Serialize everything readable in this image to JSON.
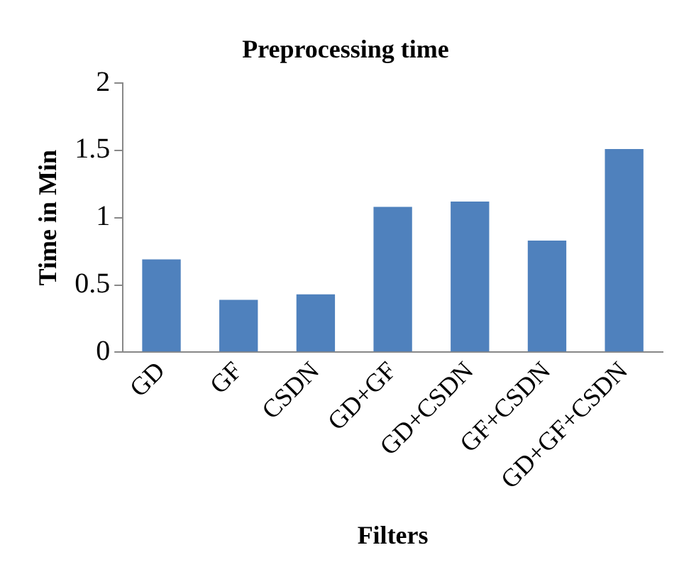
{
  "chart_data": {
    "type": "bar",
    "title": "Preprocessing time",
    "xlabel": "Filters",
    "ylabel": "Time in Min",
    "categories": [
      "GD",
      "GF",
      "CSDN",
      "GD+GF",
      "GD+CSDN",
      "GF+CSDN",
      "GD+GF+CSDN"
    ],
    "values": [
      0.69,
      0.39,
      0.43,
      1.08,
      1.12,
      0.83,
      1.51
    ],
    "color": "#4f81bd",
    "ylim": [
      0,
      2
    ],
    "yticks": [
      0,
      0.5,
      1,
      1.5,
      2
    ],
    "grid": false,
    "legend": false
  }
}
